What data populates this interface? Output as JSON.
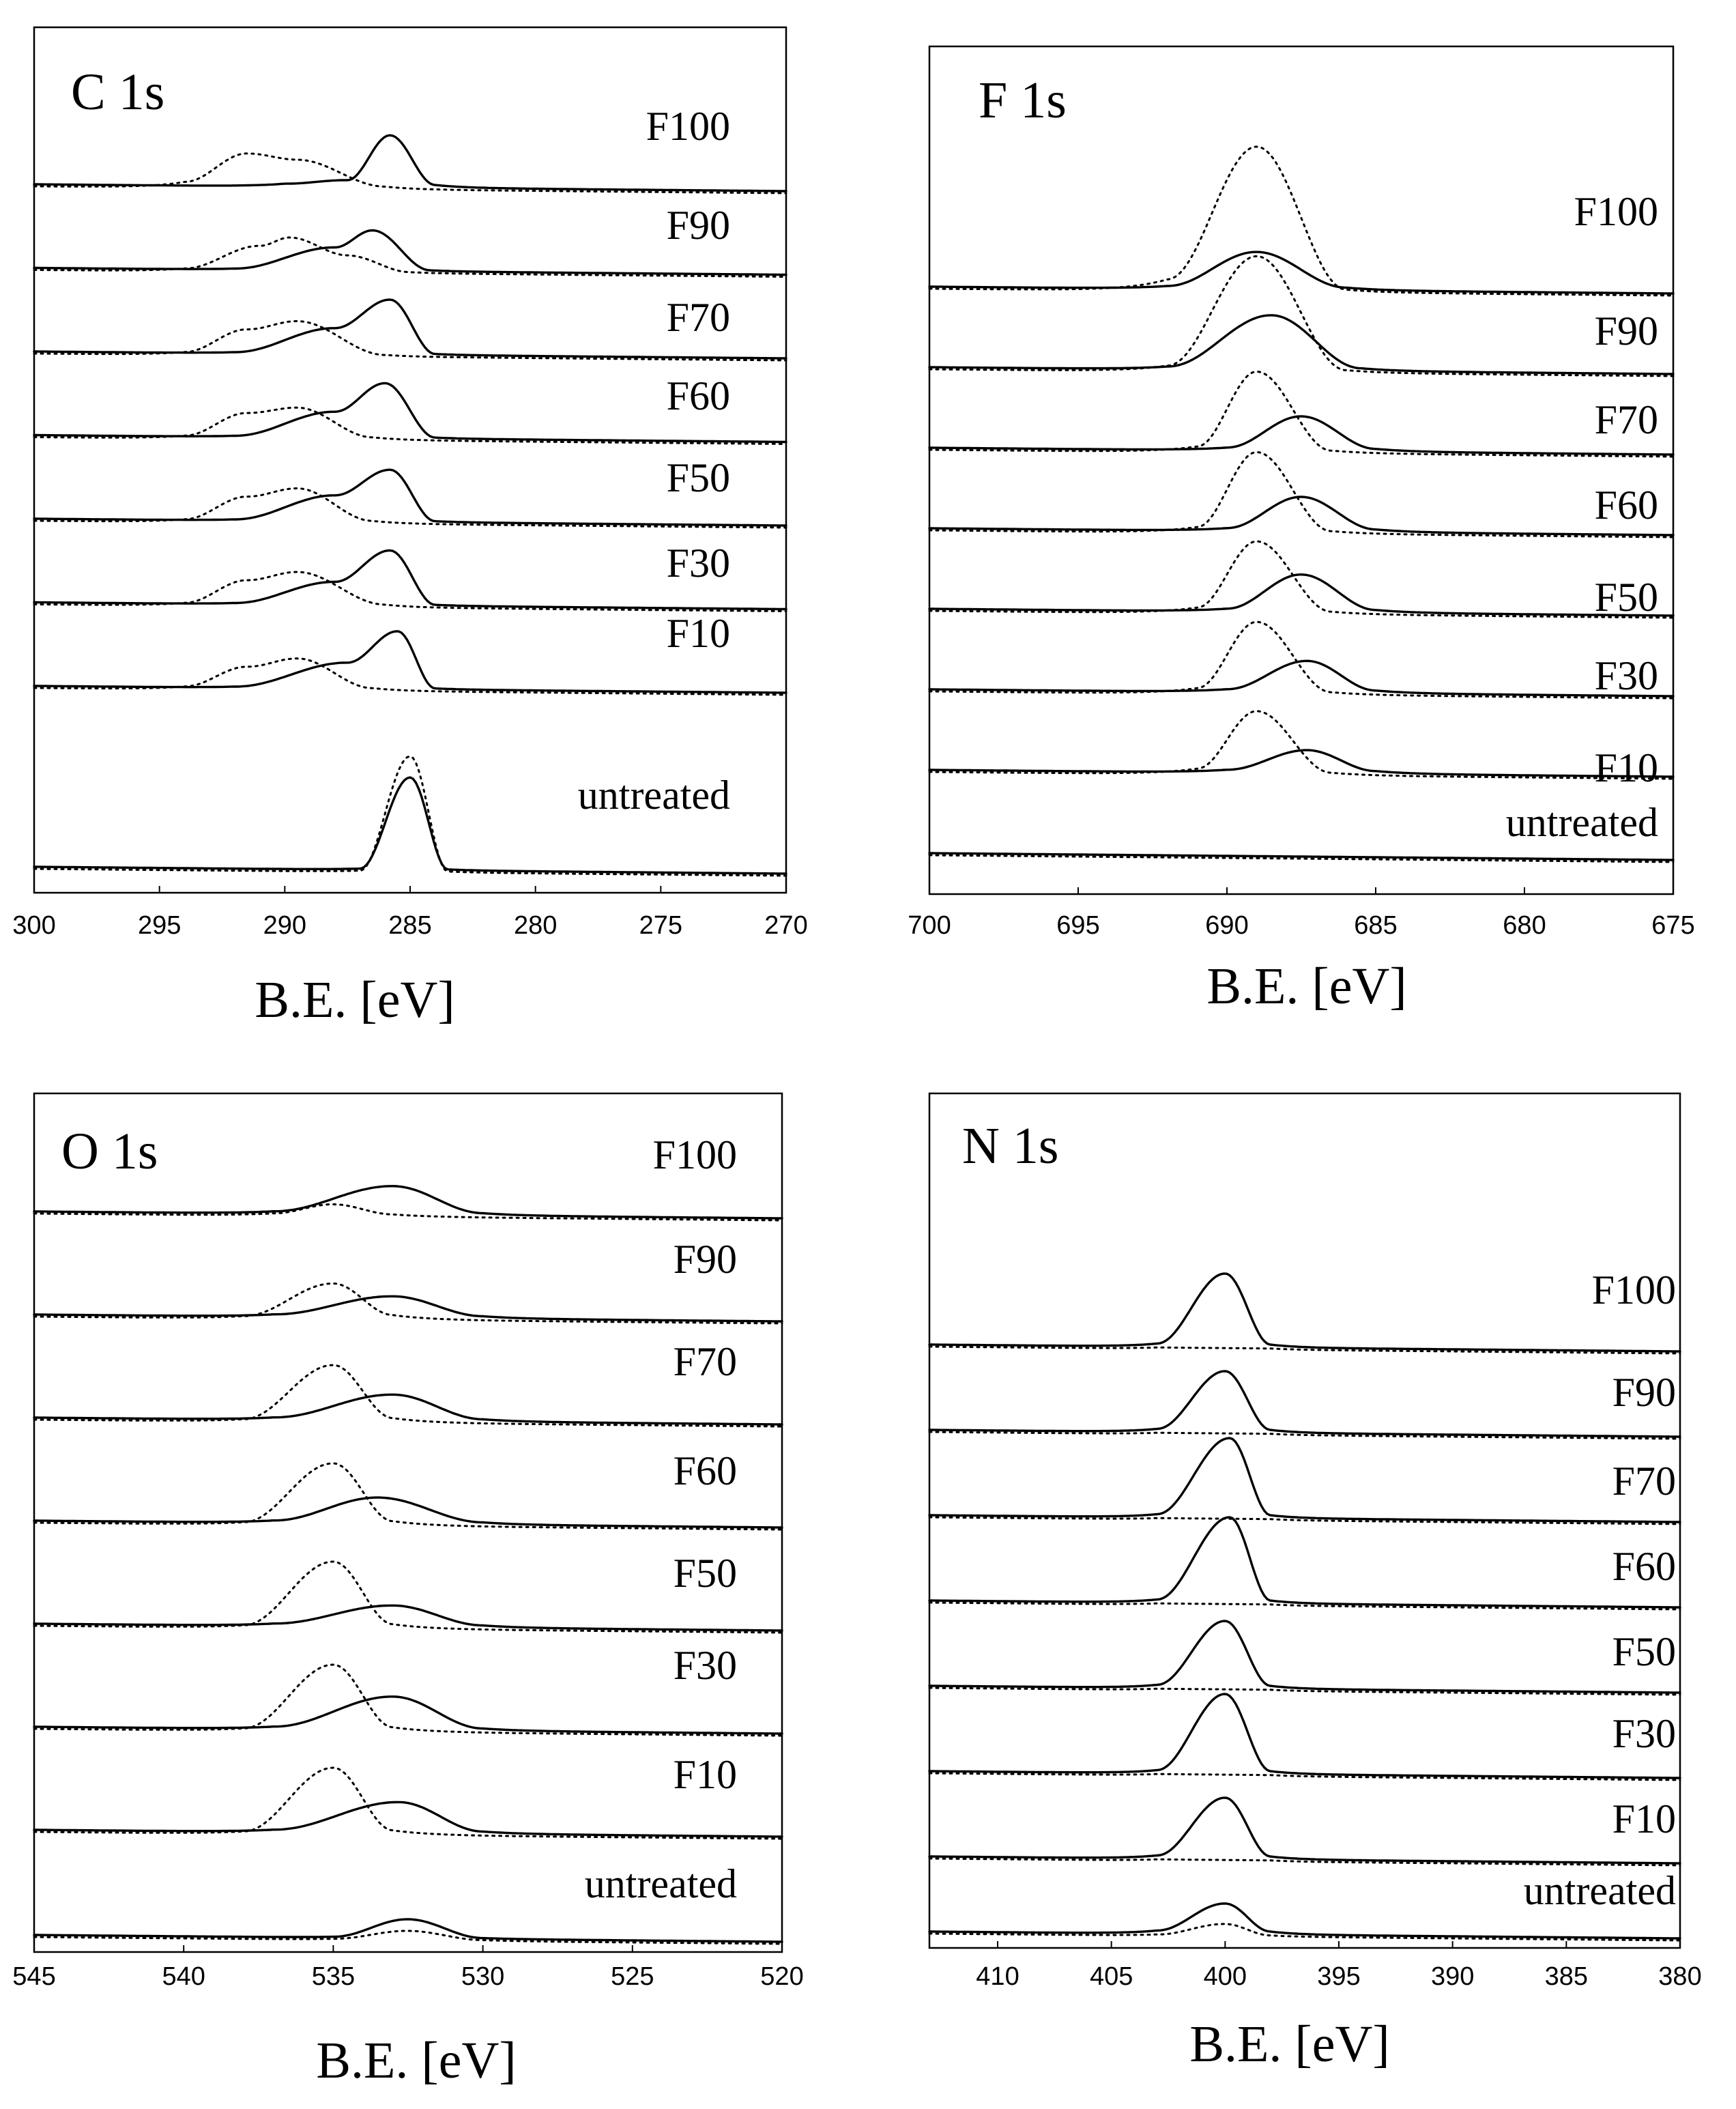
{
  "chart_data": [
    {
      "type": "line",
      "title": "C 1s",
      "xlabel": "B.E. [eV]",
      "xlim": [
        300,
        270
      ],
      "xticks": [
        300,
        295,
        290,
        285,
        280,
        275,
        270
      ],
      "legend": "none",
      "series": [
        {
          "label": "F100",
          "solid": [
            [
              290,
              0.05
            ],
            [
              287.5,
              0.12
            ],
            [
              285.8,
              0.9
            ],
            [
              284,
              0.05
            ]
          ],
          "dotted": [
            [
              294,
              0.1
            ],
            [
              291.5,
              0.6
            ],
            [
              289.5,
              0.5
            ],
            [
              286,
              0.05
            ]
          ]
        },
        {
          "label": "F90",
          "solid": [
            [
              292,
              0.02
            ],
            [
              288,
              0.4
            ],
            [
              286.5,
              0.7
            ],
            [
              284.2,
              0.02
            ]
          ],
          "dotted": [
            [
              294,
              0.05
            ],
            [
              291,
              0.45
            ],
            [
              289.8,
              0.6
            ],
            [
              287.5,
              0.3
            ],
            [
              285,
              0.02
            ]
          ]
        },
        {
          "label": "F70",
          "solid": [
            [
              292,
              0.02
            ],
            [
              288,
              0.45
            ],
            [
              285.8,
              0.95
            ],
            [
              284,
              0.02
            ]
          ],
          "dotted": [
            [
              294,
              0.05
            ],
            [
              291.5,
              0.45
            ],
            [
              289.5,
              0.6
            ],
            [
              286,
              0.03
            ]
          ]
        },
        {
          "label": "F60",
          "solid": [
            [
              292,
              0.02
            ],
            [
              288,
              0.45
            ],
            [
              286,
              0.95
            ],
            [
              284,
              0.02
            ]
          ],
          "dotted": [
            [
              294,
              0.05
            ],
            [
              291.5,
              0.45
            ],
            [
              289.5,
              0.55
            ],
            [
              286.5,
              0.05
            ]
          ]
        },
        {
          "label": "F50",
          "solid": [
            [
              292,
              0.02
            ],
            [
              288,
              0.45
            ],
            [
              285.8,
              0.9
            ],
            [
              284,
              0.02
            ]
          ],
          "dotted": [
            [
              294,
              0.05
            ],
            [
              291.5,
              0.45
            ],
            [
              289.5,
              0.6
            ],
            [
              286.5,
              0.05
            ]
          ]
        },
        {
          "label": "F30",
          "solid": [
            [
              292,
              0.02
            ],
            [
              288,
              0.4
            ],
            [
              285.8,
              0.95
            ],
            [
              284,
              0.02
            ]
          ],
          "dotted": [
            [
              294,
              0.05
            ],
            [
              291.5,
              0.45
            ],
            [
              289.5,
              0.6
            ],
            [
              286,
              0.05
            ]
          ]
        },
        {
          "label": "F10",
          "solid": [
            [
              292,
              0.02
            ],
            [
              287.5,
              0.45
            ],
            [
              285.5,
              1.0
            ],
            [
              284,
              0.02
            ]
          ],
          "dotted": [
            [
              294,
              0.05
            ],
            [
              291.5,
              0.4
            ],
            [
              289.5,
              0.55
            ],
            [
              286.5,
              0.05
            ]
          ]
        },
        {
          "label": "untreated",
          "solid": [
            [
              287,
              0.02
            ],
            [
              285,
              1.6
            ],
            [
              283.5,
              0.02
            ]
          ],
          "dotted": [
            [
              287,
              0.02
            ],
            [
              285,
              2.0
            ],
            [
              283.5,
              0.02
            ]
          ]
        }
      ]
    },
    {
      "type": "line",
      "title": "F 1s",
      "xlabel": "B.E. [eV]",
      "xlim": [
        700,
        675
      ],
      "xticks": [
        700,
        695,
        690,
        685,
        680,
        675
      ],
      "legend": "none",
      "series": [
        {
          "label": "F100",
          "solid": [
            [
              692,
              0.05
            ],
            [
              689,
              0.65
            ],
            [
              686,
              0.05
            ]
          ],
          "dotted": [
            [
              692,
              0.2
            ],
            [
              689,
              2.5
            ],
            [
              686,
              0.05
            ]
          ]
        },
        {
          "label": "F90",
          "solid": [
            [
              692,
              0.05
            ],
            [
              688.5,
              0.95
            ],
            [
              685.5,
              0.05
            ]
          ],
          "dotted": [
            [
              692,
              0.1
            ],
            [
              689,
              2.0
            ],
            [
              686,
              0.05
            ]
          ]
        },
        {
          "label": "F70",
          "solid": [
            [
              690,
              0.05
            ],
            [
              687.5,
              0.6
            ],
            [
              685,
              0.05
            ]
          ],
          "dotted": [
            [
              691,
              0.1
            ],
            [
              689,
              1.4
            ],
            [
              686.5,
              0.05
            ]
          ]
        },
        {
          "label": "F60",
          "solid": [
            [
              690,
              0.05
            ],
            [
              687.5,
              0.6
            ],
            [
              685,
              0.05
            ]
          ],
          "dotted": [
            [
              691,
              0.1
            ],
            [
              689,
              1.4
            ],
            [
              686.5,
              0.05
            ]
          ]
        },
        {
          "label": "F50",
          "solid": [
            [
              690,
              0.05
            ],
            [
              687.5,
              0.65
            ],
            [
              685,
              0.05
            ]
          ],
          "dotted": [
            [
              691,
              0.1
            ],
            [
              689,
              1.25
            ],
            [
              686.5,
              0.05
            ]
          ]
        },
        {
          "label": "F30",
          "solid": [
            [
              690,
              0.05
            ],
            [
              687.3,
              0.55
            ],
            [
              685,
              0.05
            ]
          ],
          "dotted": [
            [
              691,
              0.1
            ],
            [
              689,
              1.25
            ],
            [
              686.5,
              0.05
            ]
          ]
        },
        {
          "label": "F10",
          "solid": [
            [
              690,
              0.05
            ],
            [
              687.3,
              0.4
            ],
            [
              685,
              0.05
            ]
          ],
          "dotted": [
            [
              691,
              0.1
            ],
            [
              689,
              1.1
            ],
            [
              686.5,
              0.05
            ]
          ]
        },
        {
          "label": "untreated",
          "solid": [
            [
              700,
              0.0
            ],
            [
              675,
              0.0
            ]
          ],
          "dotted": [
            [
              700,
              0.0
            ],
            [
              675,
              0.0
            ]
          ]
        }
      ]
    },
    {
      "type": "line",
      "title": "O 1s",
      "xlabel": "B.E. [eV]",
      "xlim": [
        545,
        520
      ],
      "xticks": [
        545,
        540,
        535,
        530,
        525,
        520
      ],
      "legend": "none",
      "series": [
        {
          "label": "F100",
          "solid": [
            [
              537,
              0.05
            ],
            [
              533,
              0.6
            ],
            [
              530,
              0.05
            ]
          ],
          "dotted": [
            [
              537,
              0.05
            ],
            [
              535,
              0.25
            ],
            [
              533,
              0.05
            ]
          ]
        },
        {
          "label": "F90",
          "solid": [
            [
              537,
              0.05
            ],
            [
              533,
              0.45
            ],
            [
              530,
              0.05
            ]
          ],
          "dotted": [
            [
              538,
              0.05
            ],
            [
              535,
              0.75
            ],
            [
              533,
              0.1
            ]
          ]
        },
        {
          "label": "F70",
          "solid": [
            [
              537,
              0.05
            ],
            [
              533,
              0.55
            ],
            [
              530,
              0.05
            ]
          ],
          "dotted": [
            [
              538,
              0.05
            ],
            [
              535,
              1.2
            ],
            [
              533,
              0.1
            ]
          ]
        },
        {
          "label": "F60",
          "solid": [
            [
              537,
              0.05
            ],
            [
              533.5,
              0.55
            ],
            [
              530,
              0.05
            ]
          ],
          "dotted": [
            [
              538,
              0.05
            ],
            [
              535,
              1.3
            ],
            [
              533,
              0.1
            ]
          ]
        },
        {
          "label": "F50",
          "solid": [
            [
              537,
              0.05
            ],
            [
              533,
              0.45
            ],
            [
              530,
              0.05
            ]
          ],
          "dotted": [
            [
              538,
              0.05
            ],
            [
              535,
              1.4
            ],
            [
              533,
              0.1
            ]
          ]
        },
        {
          "label": "F30",
          "solid": [
            [
              537,
              0.05
            ],
            [
              533,
              0.7
            ],
            [
              530,
              0.05
            ]
          ],
          "dotted": [
            [
              538,
              0.05
            ],
            [
              535,
              1.4
            ],
            [
              533,
              0.1
            ]
          ]
        },
        {
          "label": "F10",
          "solid": [
            [
              537,
              0.05
            ],
            [
              532.8,
              0.65
            ],
            [
              530,
              0.05
            ]
          ],
          "dotted": [
            [
              538,
              0.05
            ],
            [
              535,
              1.4
            ],
            [
              533,
              0.1
            ]
          ]
        },
        {
          "label": "untreated",
          "solid": [
            [
              535,
              0.02
            ],
            [
              532.5,
              0.4
            ],
            [
              530,
              0.02
            ]
          ],
          "dotted": [
            [
              535,
              0.02
            ],
            [
              532.5,
              0.2
            ],
            [
              530,
              0.02
            ]
          ]
        }
      ]
    },
    {
      "type": "line",
      "title": "N 1s",
      "xlabel": "B.E. [eV]",
      "xlim": [
        413,
        380
      ],
      "xticks": [
        410,
        405,
        400,
        395,
        390,
        385,
        380
      ],
      "legend": "none",
      "series": [
        {
          "label": "F100",
          "solid": [
            [
              403,
              0.05
            ],
            [
              400,
              1.2
            ],
            [
              398,
              0.05
            ]
          ],
          "dotted": [
            [
              403,
              0.02
            ],
            [
              400,
              0.02
            ],
            [
              398,
              0.02
            ]
          ]
        },
        {
          "label": "F90",
          "solid": [
            [
              403,
              0.05
            ],
            [
              400,
              1.0
            ],
            [
              398,
              0.05
            ]
          ],
          "dotted": [
            [
              403,
              0.02
            ],
            [
              400,
              0.02
            ],
            [
              398,
              0.02
            ]
          ]
        },
        {
          "label": "F70",
          "solid": [
            [
              403,
              0.05
            ],
            [
              399.8,
              1.3
            ],
            [
              398,
              0.05
            ]
          ],
          "dotted": [
            [
              403,
              0.02
            ],
            [
              400,
              0.02
            ],
            [
              398,
              0.02
            ]
          ]
        },
        {
          "label": "F60",
          "solid": [
            [
              403,
              0.05
            ],
            [
              399.8,
              1.4
            ],
            [
              398,
              0.05
            ]
          ],
          "dotted": [
            [
              403,
              0.02
            ],
            [
              400,
              0.02
            ],
            [
              398,
              0.02
            ]
          ]
        },
        {
          "label": "F50",
          "solid": [
            [
              403,
              0.05
            ],
            [
              400,
              1.1
            ],
            [
              398,
              0.05
            ]
          ],
          "dotted": [
            [
              403,
              0.02
            ],
            [
              400,
              0.02
            ],
            [
              398,
              0.02
            ]
          ]
        },
        {
          "label": "F30",
          "solid": [
            [
              403,
              0.05
            ],
            [
              400,
              1.3
            ],
            [
              398,
              0.05
            ]
          ],
          "dotted": [
            [
              403,
              0.02
            ],
            [
              400,
              0.02
            ],
            [
              398,
              0.02
            ]
          ]
        },
        {
          "label": "F10",
          "solid": [
            [
              403,
              0.05
            ],
            [
              400,
              1.0
            ],
            [
              398,
              0.05
            ]
          ],
          "dotted": [
            [
              403,
              0.02
            ],
            [
              400,
              0.02
            ],
            [
              398,
              0.02
            ]
          ]
        },
        {
          "label": "untreated",
          "solid": [
            [
              403,
              0.05
            ],
            [
              400,
              0.5
            ],
            [
              398,
              0.05
            ]
          ],
          "dotted": [
            [
              403,
              0.02
            ],
            [
              400,
              0.2
            ],
            [
              398,
              0.02
            ]
          ]
        }
      ]
    }
  ]
}
